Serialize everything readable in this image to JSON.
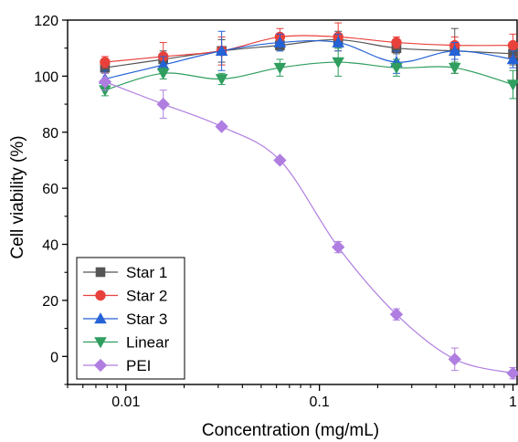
{
  "chart_data": {
    "type": "line",
    "title": "",
    "xlabel": "Concentration (mg/mL)",
    "ylabel": "Cell viability (%)",
    "x_scale": "log",
    "xlim": [
      0.005,
      1.05
    ],
    "ylim": [
      -10,
      120
    ],
    "x_ticks": [
      0.01,
      0.1,
      1
    ],
    "x_tick_labels": [
      "0.01",
      "0.1",
      "1"
    ],
    "y_ticks": [
      0,
      20,
      40,
      60,
      80,
      100,
      120
    ],
    "y_tick_labels": [
      "0",
      "20",
      "40",
      "60",
      "80",
      "100",
      "120"
    ],
    "grid": false,
    "legend_position": "bottom-left",
    "x": [
      0.0078,
      0.0156,
      0.03125,
      0.0625,
      0.125,
      0.25,
      0.5,
      1
    ],
    "series": [
      {
        "name": "Star 1",
        "color": "#555555",
        "marker": "square",
        "values": [
          103,
          106,
          109,
          111,
          113,
          110,
          109,
          108
        ],
        "errors": [
          2,
          3,
          4,
          2,
          3,
          2,
          8,
          4
        ]
      },
      {
        "name": "Star 2",
        "color": "#e8413c",
        "marker": "circle",
        "values": [
          105,
          107,
          109,
          114,
          114,
          112,
          111,
          111
        ],
        "errors": [
          2,
          5,
          5,
          3,
          5,
          2,
          3,
          4
        ]
      },
      {
        "name": "Star 3",
        "color": "#2462d6",
        "marker": "triangle-up",
        "values": [
          99,
          104,
          109,
          112,
          112,
          105,
          109,
          106
        ],
        "errors": [
          3,
          3,
          7,
          3,
          3,
          4,
          3,
          3
        ]
      },
      {
        "name": "Linear",
        "color": "#2f9e5f",
        "marker": "triangle-down",
        "values": [
          95,
          101,
          99,
          103,
          105,
          103,
          103,
          97
        ],
        "errors": [
          2,
          2,
          2,
          3,
          5,
          3,
          2,
          5
        ]
      },
      {
        "name": "PEI",
        "color": "#b07ee0",
        "marker": "diamond",
        "values": [
          98,
          90,
          82,
          70,
          39,
          15,
          -1,
          -6
        ],
        "errors": [
          3,
          5,
          1,
          1,
          2,
          2,
          4,
          2
        ]
      }
    ]
  }
}
